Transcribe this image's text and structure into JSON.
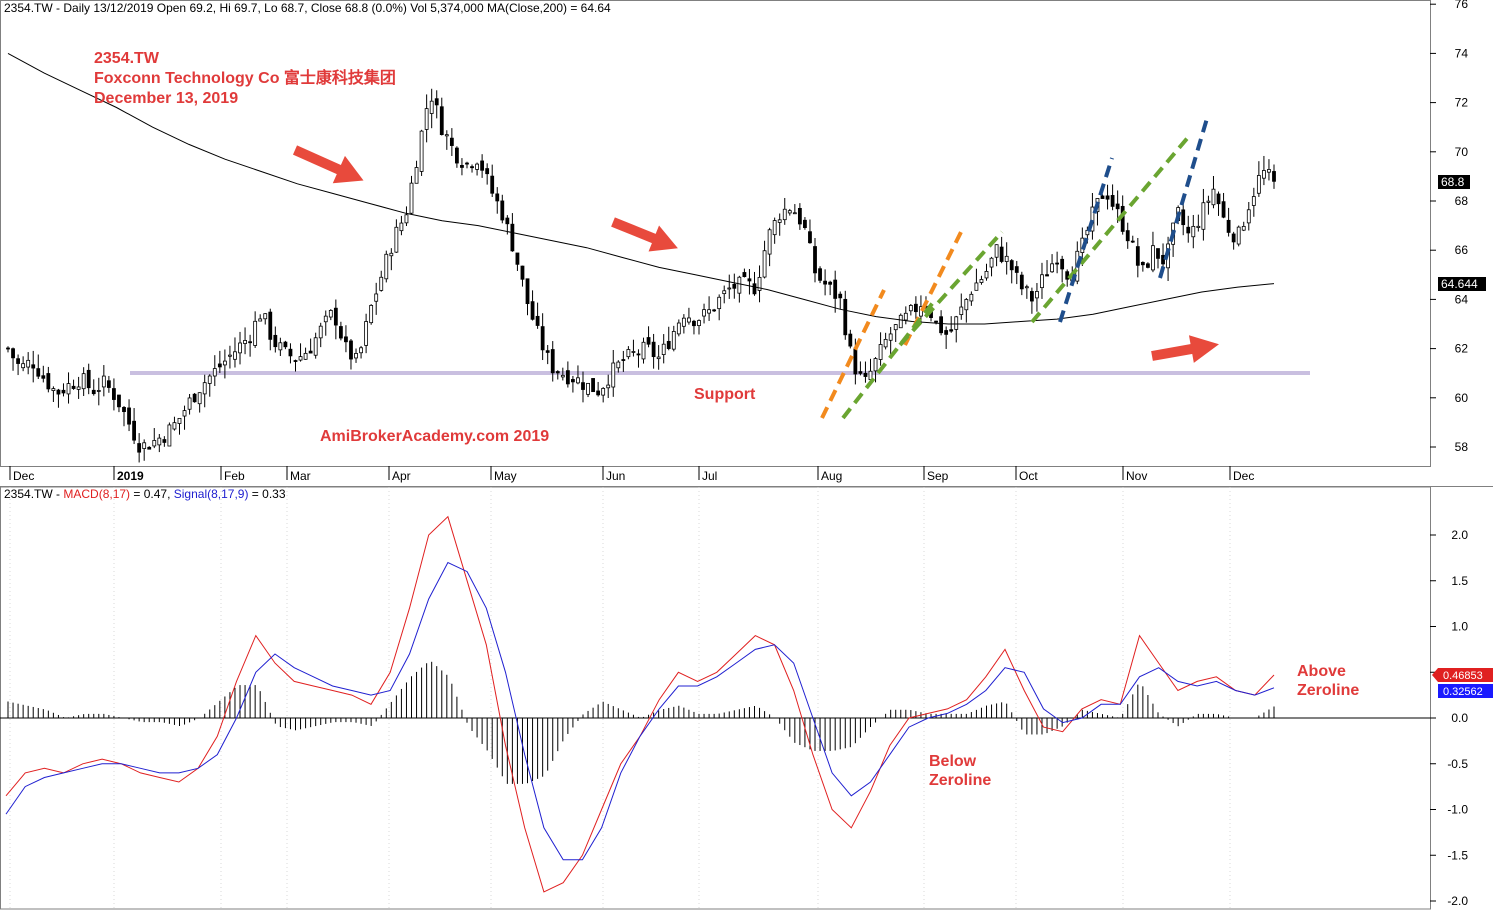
{
  "price_panel": {
    "header": "2354.TW - Daily 13/12/2019 Open 69.2, Hi 69.7, Lo 68.7, Close 68.8 (0.0%) Vol 5,374,000 MA(Close,200) = 64.64",
    "title_lines": [
      "2354.TW",
      "Foxconn Technology Co  富士康科技集团",
      "December 13, 2019"
    ],
    "support_label": "Support",
    "watermark": "AmiBrokerAcademy.com   2019",
    "last_close_tag": "68.8",
    "ma_tag": "64.644",
    "y_ticks": [
      "58",
      "60",
      "62",
      "64",
      "66",
      "68",
      "70",
      "72",
      "74",
      "76"
    ],
    "colors": {
      "annotation": "#e03a3a",
      "support_line": "#c9bfe0",
      "orange": "#f28a1e",
      "green": "#6aa531",
      "blue": "#1f4e8c"
    }
  },
  "x_axis": {
    "labels": [
      "Dec",
      "2019",
      "Feb",
      "Mar",
      "Apr",
      "May",
      "Jun",
      "Jul",
      "Aug",
      "Sep",
      "Oct",
      "Nov",
      "Dec"
    ]
  },
  "macd_panel": {
    "header_prefix": "2354.TW - ",
    "header_macd": "MACD(8,17)",
    "header_macd_val": " = 0.47, ",
    "header_signal": "Signal(8,17,9)",
    "header_signal_val": " = 0.33",
    "y_ticks": [
      "-2.0",
      "-1.5",
      "-1.0",
      "-0.5",
      "0.0",
      "0.5",
      "1.0",
      "1.5",
      "2.0"
    ],
    "macd_tag": "0.46853",
    "signal_tag": "0.32562",
    "below_label": [
      "Below",
      "Zeroline"
    ],
    "above_label": [
      "Above",
      "Zeroline"
    ],
    "colors": {
      "macd": "#e02020",
      "signal": "#2020d0",
      "histogram": "#000000",
      "macd_tag_bg": "#e02020",
      "signal_tag_bg": "#1a1aff"
    }
  },
  "chart_data": [
    {
      "type": "candlestick",
      "title": "2354.TW Foxconn Technology Co",
      "xlabel": "",
      "ylabel": "",
      "x_months": [
        "Dec",
        "Jan",
        "Feb",
        "Mar",
        "Apr",
        "May",
        "Jun",
        "Jul",
        "Aug",
        "Sep",
        "Oct",
        "Nov",
        "Dec"
      ],
      "ylim": [
        57,
        76.2
      ],
      "close_path": [
        62.0,
        61.2,
        61.5,
        60.8,
        60.2,
        60.5,
        60.8,
        60.3,
        60.6,
        60.0,
        59.0,
        58.0,
        58.2,
        58.5,
        59.0,
        59.8,
        60.5,
        61.0,
        61.5,
        62.0,
        62.5,
        63.5,
        62.3,
        61.8,
        61.6,
        62.0,
        62.8,
        63.5,
        62.0,
        61.4,
        63.5,
        65.0,
        66.5,
        67.5,
        70.0,
        72.5,
        71.0,
        70.0,
        69.5,
        69.8,
        68.5,
        67.5,
        66.0,
        64.0,
        62.5,
        61.3,
        61.0,
        60.8,
        60.5,
        60.3,
        61.0,
        61.5,
        61.8,
        62.0,
        61.6,
        62.5,
        63.5,
        63.2,
        63.4,
        64.0,
        64.5,
        64.6,
        64.5,
        66.5,
        67.5,
        67.8,
        67.0,
        65.0,
        64.5,
        64.0,
        61.5,
        60.5,
        61.5,
        62.5,
        63.0,
        63.5,
        64.0,
        63.0,
        62.5,
        63.5,
        64.5,
        65.0,
        66.0,
        65.5,
        64.5,
        64.0,
        65.0,
        65.8,
        65.0,
        66.0,
        67.5,
        68.5,
        67.5,
        66.5,
        65.0,
        66.0,
        65.5,
        67.5,
        66.5,
        67.5,
        68.5,
        67.0,
        66.5,
        68.0,
        69.2,
        68.8
      ],
      "ohlc_last": {
        "open": 69.2,
        "high": 69.7,
        "low": 68.7,
        "close": 68.8
      },
      "ma200_path": [
        74.0,
        73.2,
        72.5,
        71.8,
        71.0,
        70.3,
        69.7,
        69.2,
        68.7,
        68.3,
        67.9,
        67.5,
        67.2,
        67.0,
        66.7,
        66.4,
        66.1,
        65.7,
        65.3,
        65.0,
        64.7,
        64.4,
        64.0,
        63.6,
        63.3,
        63.1,
        63.0,
        63.0,
        63.1,
        63.2,
        63.4,
        63.7,
        64.0,
        64.3,
        64.5,
        64.644
      ],
      "support_level": 61.1,
      "ma_value": 64.644,
      "last_close": 68.8
    },
    {
      "type": "line",
      "title": "MACD(8,17), Signal(8,17,9)",
      "xlabel": "",
      "ylabel": "",
      "ylim": [
        -2.1,
        2.5
      ],
      "series": [
        {
          "name": "MACD(8,17)",
          "values": [
            -0.85,
            -0.6,
            -0.55,
            -0.6,
            -0.5,
            -0.45,
            -0.5,
            -0.6,
            -0.65,
            -0.7,
            -0.55,
            -0.2,
            0.4,
            0.9,
            0.6,
            0.4,
            0.35,
            0.3,
            0.25,
            0.15,
            0.5,
            1.2,
            2.0,
            2.2,
            1.5,
            0.8,
            -0.3,
            -1.2,
            -1.9,
            -1.8,
            -1.5,
            -1.0,
            -0.5,
            -0.2,
            0.2,
            0.5,
            0.4,
            0.5,
            0.7,
            0.9,
            0.8,
            0.3,
            -0.4,
            -1.0,
            -1.2,
            -0.8,
            -0.3,
            0.0,
            0.05,
            0.1,
            0.2,
            0.45,
            0.75,
            0.3,
            -0.1,
            -0.15,
            0.1,
            0.2,
            0.15,
            0.9,
            0.6,
            0.3,
            0.4,
            0.45,
            0.3,
            0.25,
            0.47
          ]
        },
        {
          "name": "Signal(8,17,9)",
          "values": [
            -1.05,
            -0.75,
            -0.65,
            -0.6,
            -0.55,
            -0.5,
            -0.5,
            -0.55,
            -0.6,
            -0.6,
            -0.55,
            -0.4,
            0.0,
            0.5,
            0.7,
            0.55,
            0.45,
            0.35,
            0.3,
            0.25,
            0.3,
            0.7,
            1.3,
            1.7,
            1.6,
            1.2,
            0.5,
            -0.4,
            -1.2,
            -1.55,
            -1.55,
            -1.2,
            -0.6,
            -0.2,
            0.1,
            0.35,
            0.35,
            0.45,
            0.6,
            0.75,
            0.8,
            0.6,
            0.0,
            -0.6,
            -0.85,
            -0.7,
            -0.4,
            -0.1,
            0.0,
            0.05,
            0.15,
            0.3,
            0.55,
            0.5,
            0.1,
            -0.05,
            0.0,
            0.15,
            0.15,
            0.45,
            0.55,
            0.4,
            0.35,
            0.4,
            0.3,
            0.25,
            0.33
          ]
        }
      ],
      "histogram": "MACD minus Signal",
      "macd_value": 0.47,
      "signal_value": 0.33
    }
  ]
}
